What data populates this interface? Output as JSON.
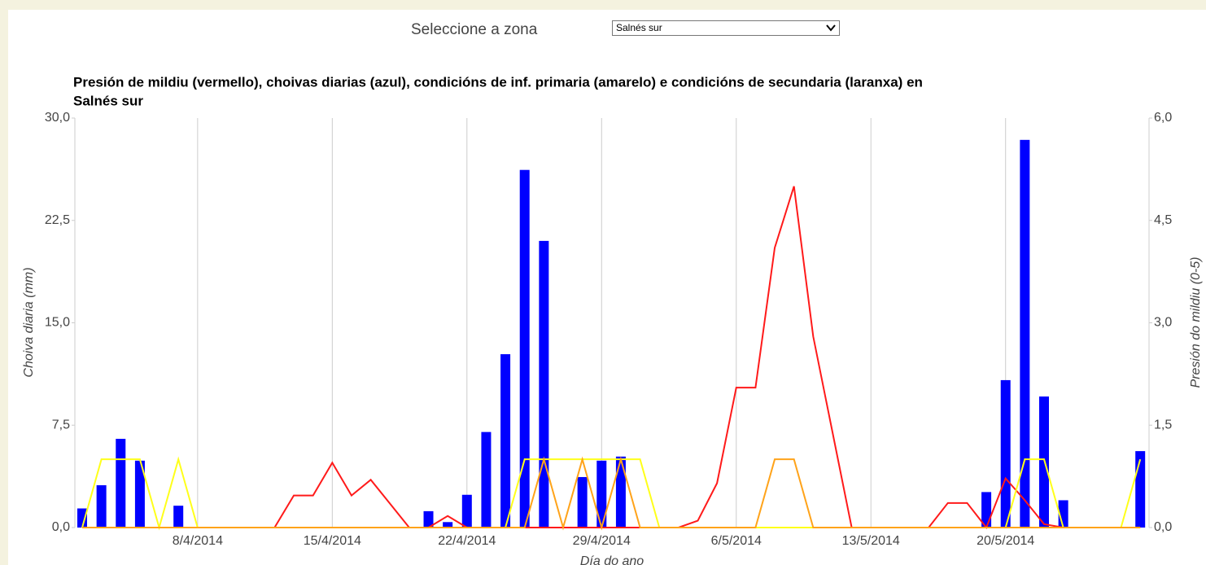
{
  "control": {
    "label": "Seleccione a zona",
    "selected": "Salnés sur"
  },
  "chart_data": {
    "type": "bar",
    "title": "Presión de mildiu (vermello), choivas diarias (azul), condicións de inf. primaria (amarelo) e condicións de secundaria (laranxa) en",
    "subtitle": "Salnés sur",
    "y_label": "Choiva diaria (mm)",
    "y2_label": "Presión do mildiu (0-5)",
    "x_label": "Día do ano",
    "categories": [
      null,
      null,
      null,
      null,
      null,
      null,
      "8/4/2014",
      null,
      null,
      null,
      null,
      null,
      null,
      "15/4/2014",
      null,
      null,
      null,
      null,
      null,
      null,
      "22/4/2014",
      null,
      null,
      null,
      null,
      null,
      null,
      "29/4/2014",
      null,
      null,
      null,
      null,
      null,
      null,
      "6/5/2014",
      null,
      null,
      null,
      null,
      null,
      null,
      "13/5/2014",
      null,
      null,
      null,
      null,
      null,
      null,
      "20/5/2014",
      null,
      null,
      null,
      null,
      null,
      null,
      null
    ],
    "grid": true,
    "ylim": [
      0,
      30
    ],
    "yticks": [
      {
        "value": 0,
        "label": "0,0"
      },
      {
        "value": 7.5,
        "label": "7,5"
      },
      {
        "value": 15,
        "label": "15,0"
      },
      {
        "value": 22.5,
        "label": "22,5"
      },
      {
        "value": 30,
        "label": "30,0"
      }
    ],
    "y2lim": [
      0,
      6
    ],
    "y2ticks": [
      {
        "value": 0,
        "label": "0,0"
      },
      {
        "value": 1.5,
        "label": "1,5"
      },
      {
        "value": 3,
        "label": "3,0"
      },
      {
        "value": 4.5,
        "label": "4,5"
      },
      {
        "value": 6,
        "label": "6,0"
      }
    ],
    "series": [
      {
        "type": "bar",
        "color": "#0000ff",
        "values": [
          1.4,
          3.1,
          6.5,
          4.9,
          0,
          1.6,
          0,
          0,
          0,
          0,
          0,
          0,
          0,
          0,
          0,
          0,
          0,
          0,
          1.2,
          0.4,
          2.4,
          7.0,
          12.7,
          26.2,
          21.0,
          0,
          3.7,
          4.9,
          5.2,
          0,
          0,
          0,
          0,
          0,
          0,
          0,
          0,
          0,
          0,
          0,
          0,
          0,
          0,
          0,
          0,
          0,
          0,
          2.6,
          10.8,
          28.4,
          9.6,
          2.0,
          0,
          0,
          0,
          5.6
        ]
      },
      {
        "type": "line",
        "axis": "y2",
        "color": "#ff1a1a",
        "values": [
          0,
          0,
          0,
          0,
          0,
          0,
          0,
          0,
          0,
          0,
          0,
          0.47,
          0.47,
          0.95,
          0.47,
          0.7,
          0.35,
          0,
          0,
          0.17,
          0,
          0,
          0,
          0,
          0,
          0,
          0,
          0,
          0,
          0,
          0,
          0,
          0.1,
          0.65,
          2.05,
          2.05,
          4.1,
          5.0,
          2.8,
          1.4,
          0,
          0,
          0,
          0,
          0,
          0.36,
          0.36,
          0,
          0.72,
          0.4,
          0.05,
          0,
          0,
          0,
          0,
          0
        ]
      },
      {
        "type": "line",
        "axis": "y2",
        "color": "#ffff1a",
        "values": [
          0,
          1,
          1,
          1,
          0,
          1,
          0,
          0,
          0,
          0,
          0,
          0,
          0,
          0,
          0,
          0,
          0,
          0,
          0,
          0,
          0,
          0,
          0,
          1,
          1,
          1,
          1,
          1,
          1,
          1,
          0,
          0,
          0,
          0,
          0,
          0,
          0,
          0,
          0,
          0,
          0,
          0,
          0,
          0,
          0,
          0,
          0,
          0,
          0,
          1,
          1,
          0,
          0,
          0,
          0,
          1
        ]
      },
      {
        "type": "line",
        "axis": "y2",
        "color": "#ffa31a",
        "values": [
          0,
          0,
          0,
          0,
          0,
          0,
          0,
          0,
          0,
          0,
          0,
          0,
          0,
          0,
          0,
          0,
          0,
          0,
          0,
          0,
          0,
          0,
          0,
          0,
          1,
          0,
          1,
          0,
          1,
          0,
          0,
          0,
          0,
          0,
          0,
          0,
          1,
          1,
          0,
          0,
          0,
          0,
          0,
          0,
          0,
          0,
          0,
          0,
          0,
          0,
          0,
          0,
          0,
          0,
          0,
          0
        ]
      }
    ]
  }
}
